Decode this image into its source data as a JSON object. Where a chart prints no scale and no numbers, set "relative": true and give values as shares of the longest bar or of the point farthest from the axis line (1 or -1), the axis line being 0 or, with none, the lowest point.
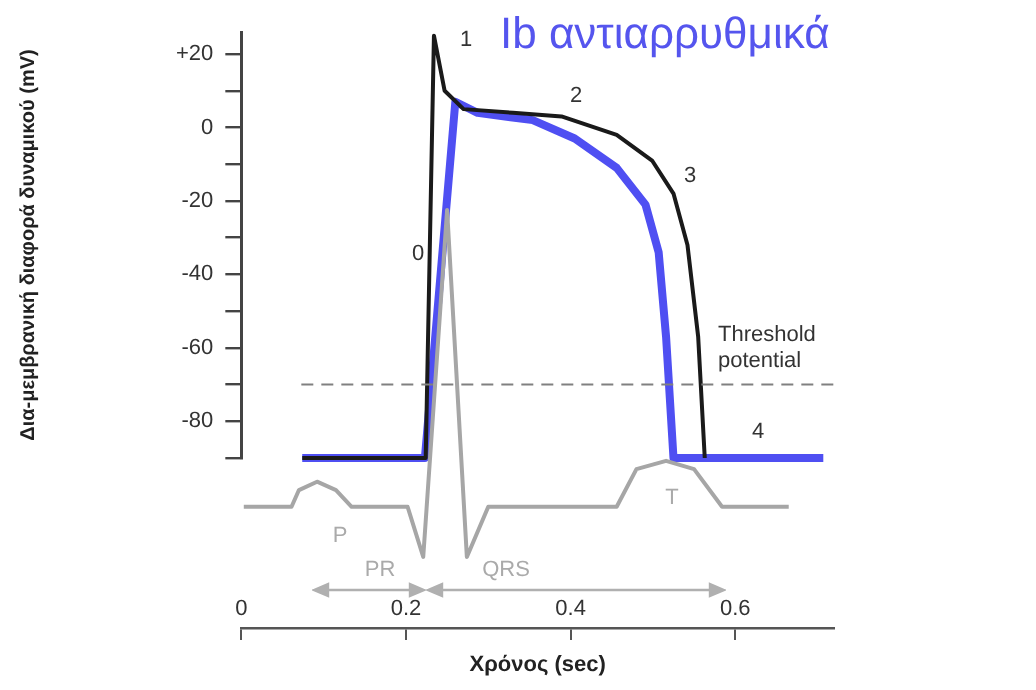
{
  "chart_data": [
    {
      "type": "line",
      "title": "Ib αντιαρρυθμικά",
      "ylabel": "Δια-μεμβρανική διαφορά δυναμικού (mV)",
      "xlim": [
        0,
        0.72
      ],
      "xticks": [
        0,
        0.2,
        0.4,
        0.6
      ],
      "ylim": [
        -90,
        26
      ],
      "yticks": [
        {
          "value": 20,
          "label": "+20"
        },
        {
          "value": 10,
          "label": null
        },
        0,
        {
          "value": -10,
          "label": null
        },
        -20,
        {
          "value": -30,
          "label": null
        },
        -40,
        {
          "value": -50,
          "label": null
        },
        -60,
        {
          "value": -70,
          "label": null
        },
        -80,
        {
          "value": -90,
          "label": null
        }
      ],
      "tick_labels": "y",
      "marker": "none",
      "series": [
        {
          "color": "#1a1a1a",
          "x": [
            0.074,
            0.224,
            0.234,
            0.247,
            0.27,
            0.33,
            0.389,
            0.456,
            0.499,
            0.525,
            0.542,
            0.555,
            0.563
          ],
          "values": [
            -90,
            -90,
            25,
            10,
            5,
            4,
            3,
            -2,
            -9,
            -18,
            -32,
            -57,
            -90
          ]
        },
        {
          "color": "#4f4ff2",
          "x": [
            0.074,
            0.223,
            0.26,
            0.287,
            0.354,
            0.405,
            0.456,
            0.491,
            0.507,
            0.516,
            0.525,
            0.707
          ],
          "values": [
            -90,
            -90,
            7,
            4,
            2,
            -3,
            -11,
            -21,
            -34,
            -57,
            -90,
            -90
          ]
        }
      ],
      "ref_lines": [
        {
          "axis": "y",
          "value": -70,
          "label": "Threshold potential",
          "color": "#808080",
          "line_style": "dashed"
        }
      ],
      "annotations": [
        "1",
        "2",
        "3",
        "0",
        "4"
      ]
    },
    {
      "type": "line",
      "relative": true,
      "xlabel": "Χρόνος (sec)",
      "xlim": [
        0,
        0.72
      ],
      "xticks": [
        0,
        0.2,
        0.4,
        0.6
      ],
      "tick_labels": "x",
      "marker": "none",
      "series": [
        {
          "color": "#a6a6a6",
          "x": [
            0.003,
            0.061,
            0.07,
            0.092,
            0.115,
            0.134,
            0.202,
            0.221,
            0.25,
            0.274,
            0.3,
            0.456,
            0.48,
            0.516,
            0.55,
            0.584,
            0.665
          ],
          "values": [
            0.29,
            0.29,
            0.33,
            0.35,
            0.33,
            0.29,
            0.29,
            0.17,
            1,
            0.17,
            0.29,
            0.29,
            0.38,
            0.4,
            0.38,
            0.29,
            0.29
          ]
        }
      ],
      "annotations": [
        "P",
        "PR",
        "QRS",
        "T"
      ]
    }
  ]
}
